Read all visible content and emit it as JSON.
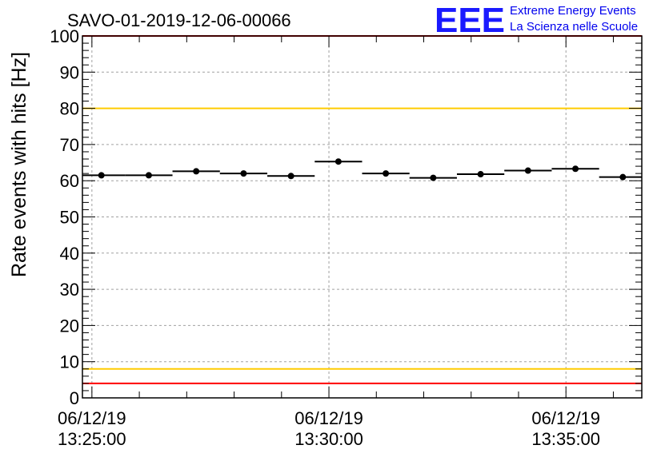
{
  "chart_data": {
    "type": "scatter",
    "title": "SAVO-01-2019-12-06-00066",
    "xlabel": "",
    "ylabel": "Rate events with hits [Hz]",
    "ylim": [
      0,
      100
    ],
    "yticks": [
      0,
      10,
      20,
      30,
      40,
      50,
      60,
      70,
      80,
      90,
      100
    ],
    "xlim_minutes": [
      -0.2,
      11.6
    ],
    "x_ticks": [
      {
        "minutes": 0,
        "date": "06/12/19",
        "time": "13:25:00"
      },
      {
        "minutes": 5,
        "date": "06/12/19",
        "time": "13:30:00"
      },
      {
        "minutes": 10,
        "date": "06/12/19",
        "time": "13:35:00"
      }
    ],
    "bin_width_minutes": 1.0,
    "series": [
      {
        "name": "rate",
        "x_minutes": [
          0.2,
          1.2,
          2.2,
          3.2,
          4.2,
          5.2,
          6.2,
          7.2,
          8.2,
          9.2,
          10.2,
          11.2
        ],
        "values": [
          61.5,
          61.5,
          62.6,
          62.0,
          61.3,
          65.3,
          62.0,
          60.8,
          61.8,
          62.8,
          63.3,
          61.0
        ]
      }
    ],
    "reference_lines": [
      {
        "name": "upper-red-line",
        "value": 100,
        "color": "#ff0000"
      },
      {
        "name": "upper-yellow-line",
        "value": 80,
        "color": "#ffcc00"
      },
      {
        "name": "lower-yellow-line",
        "value": 8,
        "color": "#ffcc00"
      },
      {
        "name": "lower-red-line",
        "value": 4,
        "color": "#ff0000"
      }
    ],
    "grid": true
  },
  "logo": {
    "mark": "EEE",
    "line1": "Extreme Energy Events",
    "line2": "La Scienza nelle Scuole"
  },
  "colors": {
    "logo_blue": "#1a1aff",
    "grid": "#a0a0a0",
    "marker": "#000000"
  }
}
